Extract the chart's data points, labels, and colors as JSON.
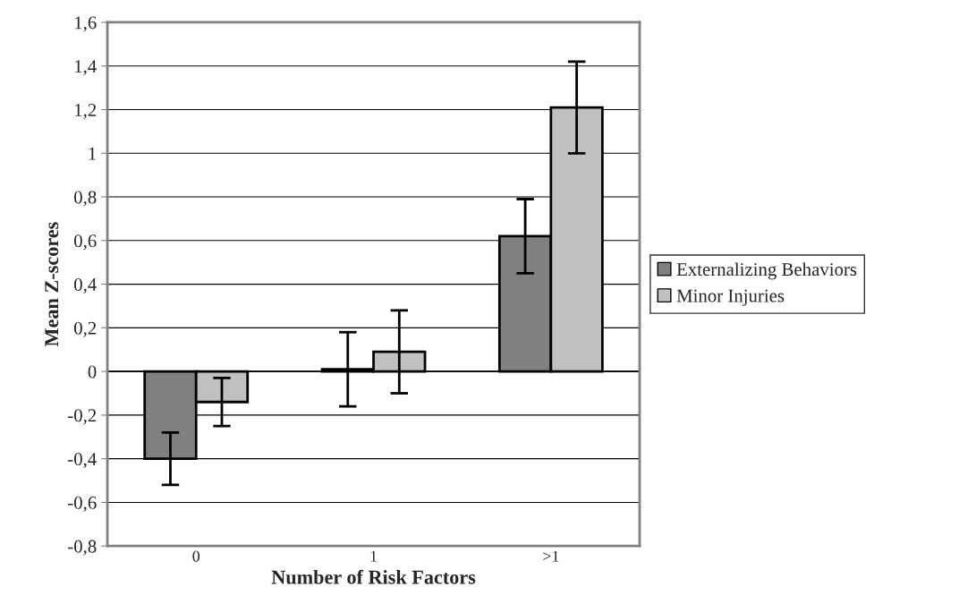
{
  "chart_data": {
    "type": "bar",
    "xlabel": "Number of Risk Factors",
    "ylabel": "Mean Z-scores",
    "categories": [
      "0",
      "1",
      ">1"
    ],
    "series": [
      {
        "name": "Externalizing Behaviors",
        "color": "#808080",
        "values": [
          -0.4,
          0.01,
          0.62
        ],
        "errors": [
          0.12,
          0.17,
          0.17
        ]
      },
      {
        "name": "Minor Injuries",
        "color": "#c0c0c0",
        "values": [
          -0.14,
          0.09,
          1.21
        ],
        "errors": [
          0.11,
          0.19,
          0.21
        ]
      }
    ],
    "ylim": [
      -0.8,
      1.6
    ],
    "yticks": [
      {
        "value": -0.8,
        "label": "-0,8"
      },
      {
        "value": -0.6,
        "label": "-0,6"
      },
      {
        "value": -0.4,
        "label": "-0,4"
      },
      {
        "value": -0.2,
        "label": "-0,2"
      },
      0,
      {
        "value": 0.2,
        "label": "0,2"
      },
      {
        "value": 0.4,
        "label": "0,4"
      },
      {
        "value": 0.6,
        "label": "0,6"
      },
      {
        "value": 0.8,
        "label": "0,8"
      },
      1,
      {
        "value": 1.2,
        "label": "1,2"
      },
      {
        "value": 1.4,
        "label": "1,4"
      },
      {
        "value": 1.6,
        "label": "1,6"
      }
    ],
    "grid": "y",
    "legend": "right"
  }
}
